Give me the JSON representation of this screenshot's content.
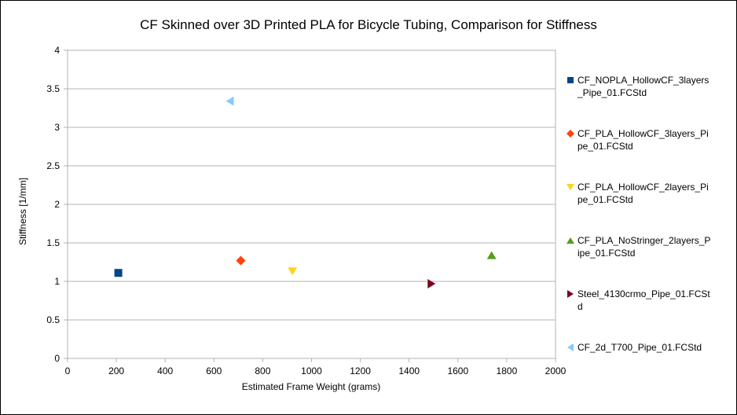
{
  "chart_data": {
    "type": "scatter",
    "title": "CF Skinned over 3D Printed PLA for Bicycle Tubing, Comparison for Stiffness",
    "xlabel": "Estimated Frame Weight (grams)",
    "ylabel": "Stiffness [1/mm]",
    "xlim": [
      0,
      2000
    ],
    "ylim": [
      0,
      4
    ],
    "x_ticks": [
      0,
      200,
      400,
      600,
      800,
      1000,
      1200,
      1400,
      1600,
      1800,
      2000
    ],
    "y_ticks": [
      0,
      0.5,
      1,
      1.5,
      2,
      2.5,
      3,
      3.5,
      4
    ],
    "x_tick_labels": [
      "0",
      "200",
      "400",
      "600",
      "800",
      "1000",
      "1200",
      "1400",
      "1600",
      "1800",
      "2000"
    ],
    "y_tick_labels": [
      "0",
      "0.5",
      "1",
      "1.5",
      "2",
      "2.5",
      "3",
      "3.5",
      "4"
    ],
    "grid": "horizontal",
    "legend_position": "right",
    "series": [
      {
        "legend_lines": [
          "CF_NOPLA_HollowCF_3layers",
          "_Pipe_01.FCStd"
        ],
        "marker": "square",
        "color": "#004586",
        "x": [
          208
        ],
        "y": [
          1.11
        ]
      },
      {
        "legend_lines": [
          "CF_PLA_HollowCF_3layers_Pi",
          "pe_01.FCStd"
        ],
        "marker": "diamond",
        "color": "#ff420e",
        "x": [
          710
        ],
        "y": [
          1.27
        ]
      },
      {
        "legend_lines": [
          "CF_PLA_HollowCF_2layers_Pi",
          "pe_01.FCStd"
        ],
        "marker": "triangle-down",
        "color": "#ffd320",
        "x": [
          922
        ],
        "y": [
          1.13
        ]
      },
      {
        "legend_lines": [
          "CF_PLA_NoStringer_2layers_P",
          "ipe_01.FCStd"
        ],
        "marker": "triangle-up",
        "color": "#579d1c",
        "x": [
          1738
        ],
        "y": [
          1.34
        ]
      },
      {
        "legend_lines": [
          "Steel_4130crmo_Pipe_01.FCSt",
          "d"
        ],
        "marker": "triangle-right",
        "color": "#7e0021",
        "x": [
          1492
        ],
        "y": [
          0.97
        ]
      },
      {
        "legend_lines": [
          "CF_2d_T700_Pipe_01.FCStd"
        ],
        "marker": "triangle-left",
        "color": "#83caff",
        "x": [
          665
        ],
        "y": [
          3.34
        ]
      }
    ]
  }
}
